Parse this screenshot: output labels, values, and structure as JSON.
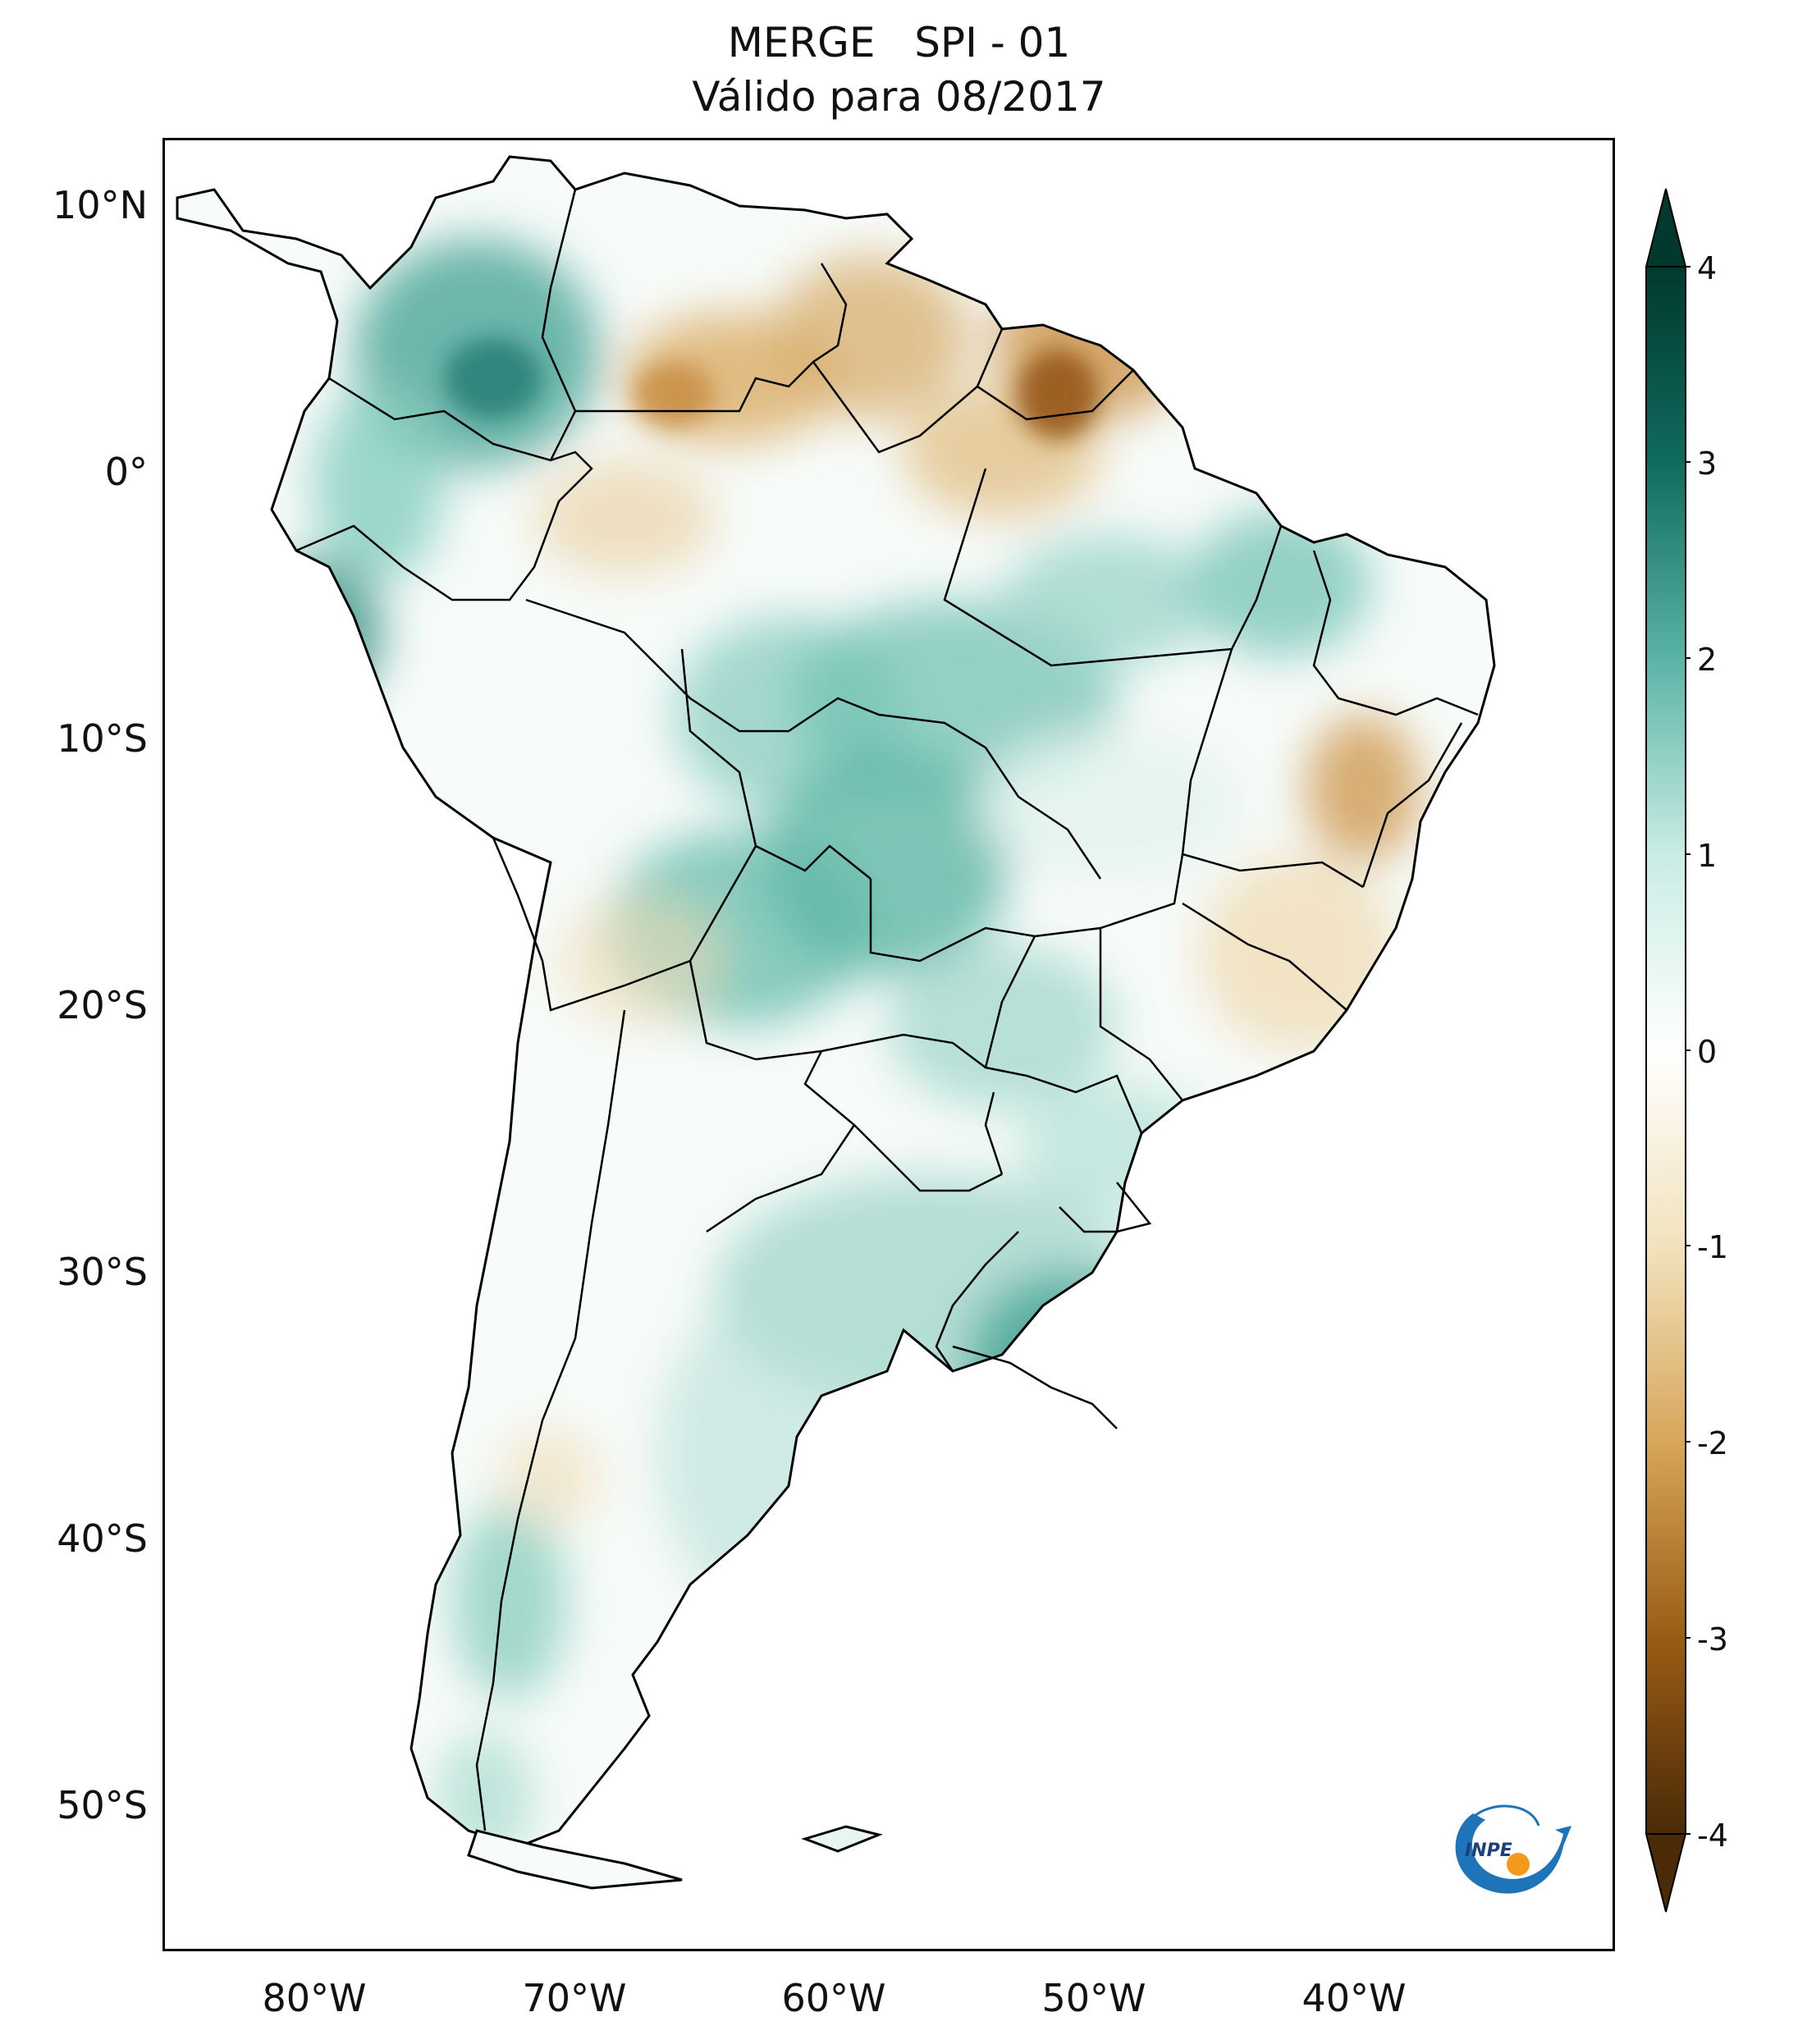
{
  "title": {
    "line1": "MERGE   SPI - 01",
    "line2": "Válido para 08/2017"
  },
  "map": {
    "region": "South America",
    "variable": "SPI - 01",
    "latitude_labels": [
      "10°N",
      "0°",
      "10°S",
      "20°S",
      "30°S",
      "40°S",
      "50°S"
    ],
    "longitude_labels": [
      "80°W",
      "70°W",
      "60°W",
      "50°W",
      "40°W"
    ]
  },
  "colorbar": {
    "ticks": [
      "4",
      "3",
      "2",
      "1",
      "0",
      "-1",
      "-2",
      "-3",
      "-4"
    ],
    "colors": {
      "max": "#01392e",
      "high": "#0f6b5e",
      "mid_high": "#5ab4a6",
      "low_pos": "#c9ece4",
      "zero": "#ffffff",
      "low_neg": "#f2e2bd",
      "mid_low": "#d7a659",
      "low": "#9a5c14",
      "min": "#4a2a07"
    }
  },
  "logo": {
    "text": "INPE",
    "colors": {
      "arrow": "#1d74b8",
      "dot": "#f39a1c"
    }
  }
}
